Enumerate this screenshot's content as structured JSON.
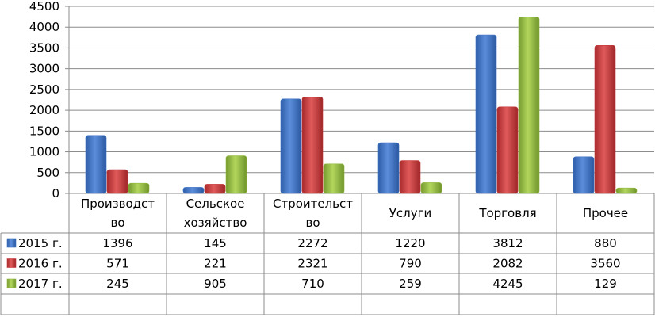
{
  "chart_data": {
    "type": "bar",
    "categories": [
      [
        "Производст",
        "во"
      ],
      [
        "Сельское",
        "хозяйство"
      ],
      [
        "Строительст",
        "во"
      ],
      [
        "Услуги"
      ],
      [
        "Торговля"
      ],
      [
        "Прочее"
      ]
    ],
    "series": [
      {
        "name": "2015 г.",
        "color": "#3f73c4",
        "values": [
          1396,
          145,
          2272,
          1220,
          3812,
          880
        ]
      },
      {
        "name": "2016 г.",
        "color": "#c4393b",
        "values": [
          571,
          221,
          2321,
          790,
          2082,
          3560
        ]
      },
      {
        "name": "2017 г.",
        "color": "#92b940",
        "values": [
          245,
          905,
          710,
          259,
          4245,
          129
        ]
      }
    ],
    "y_ticks": [
      0,
      500,
      1000,
      1500,
      2000,
      2500,
      3000,
      3500,
      4000,
      4500
    ],
    "ylim": [
      0,
      4500
    ],
    "grid": true,
    "legend": "data-table"
  }
}
